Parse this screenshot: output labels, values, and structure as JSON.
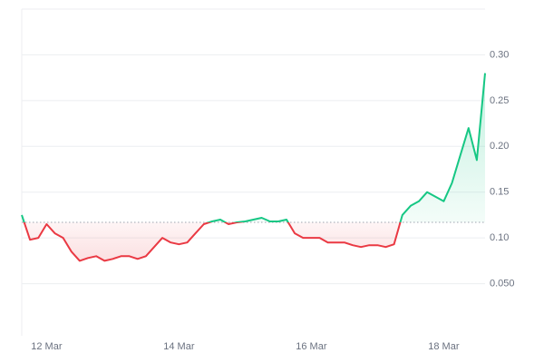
{
  "chart_data": {
    "type": "line",
    "series": [
      {
        "name": "Price",
        "color": "#16c784",
        "color_below": "#ea3943",
        "values": [
          0.125,
          0.098,
          0.1,
          0.115,
          0.105,
          0.1,
          0.085,
          0.075,
          0.078,
          0.08,
          0.075,
          0.077,
          0.08,
          0.08,
          0.077,
          0.08,
          0.09,
          0.1,
          0.095,
          0.093,
          0.095,
          0.105,
          0.115,
          0.118,
          0.12,
          0.115,
          0.117,
          0.118,
          0.12,
          0.122,
          0.118,
          0.118,
          0.12,
          0.105,
          0.1,
          0.1,
          0.1,
          0.095,
          0.095,
          0.095,
          0.092,
          0.09,
          0.092,
          0.092,
          0.09,
          0.093,
          0.125,
          0.135,
          0.14,
          0.15,
          0.145,
          0.14,
          0.16,
          0.19,
          0.22,
          0.185,
          0.28
        ]
      }
    ],
    "reference_line": 0.117,
    "xlim": [
      0,
      56
    ],
    "xticks": [
      {
        "value": 3,
        "label": "12 Mar"
      },
      {
        "value": 19,
        "label": "14 Mar"
      },
      {
        "value": 35,
        "label": "16 Mar"
      },
      {
        "value": 51,
        "label": "18 Mar"
      }
    ],
    "ylim": [
      0,
      0.35
    ],
    "yticks": [
      {
        "value": 0.05,
        "label": "0.050"
      },
      {
        "value": 0.1,
        "label": "0.10"
      },
      0.15,
      {
        "value": 0.2,
        "label": "0.20"
      },
      0.25,
      {
        "value": 0.3,
        "label": "0.30"
      }
    ],
    "grid": true
  }
}
